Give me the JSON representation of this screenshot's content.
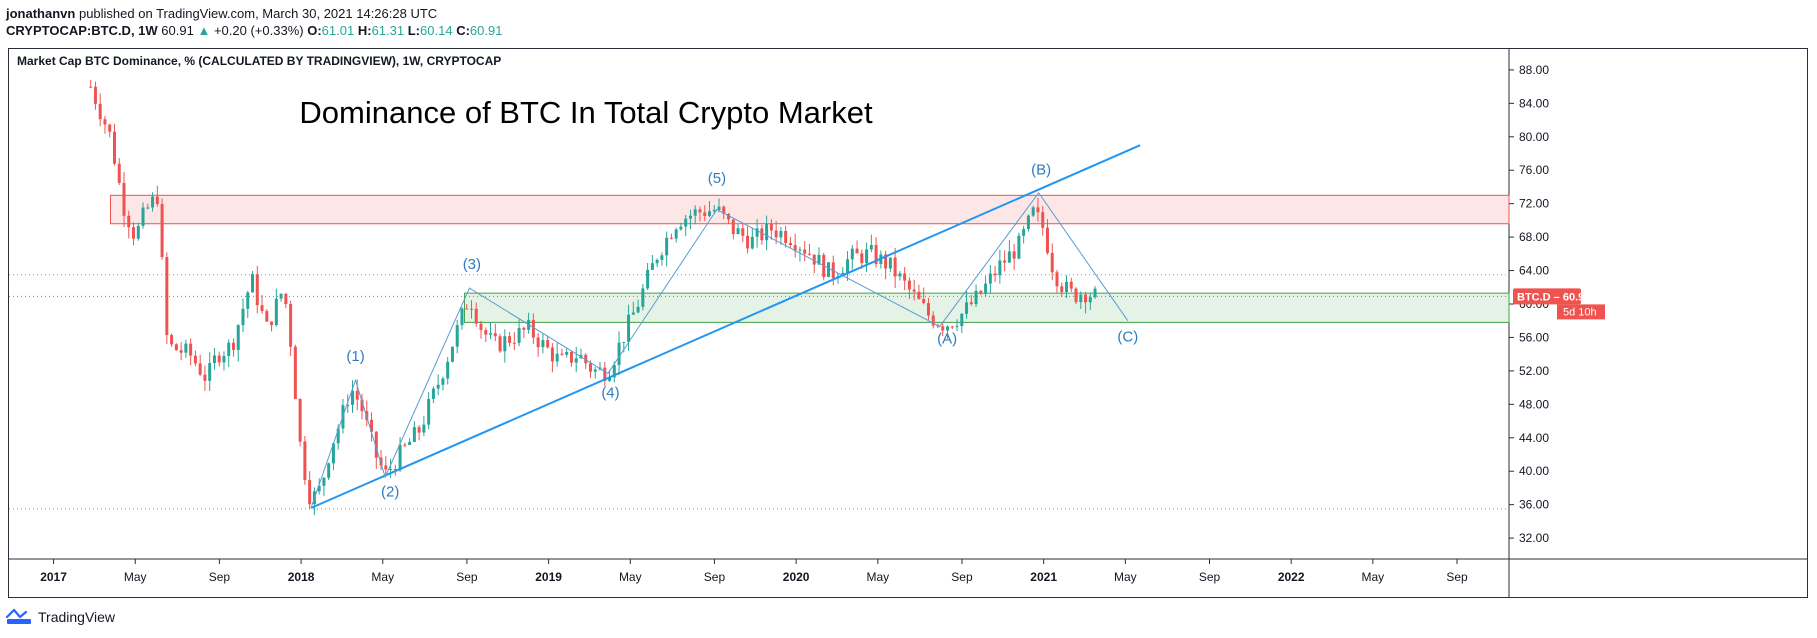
{
  "header": {
    "author": "jonathanvn",
    "published": "published on TradingView.com, March 30, 2021 14:26:28 UTC",
    "symbol": "CRYPTOCAP:BTC.D, 1W",
    "last": "60.91",
    "change": "+0.20 (+0.33%)",
    "o_label": "O:",
    "o_val": "61.01",
    "h_label": "H:",
    "h_val": "61.31",
    "l_label": "L:",
    "l_val": "60.14",
    "c_label": "C:",
    "c_val": "60.91"
  },
  "footer": {
    "brand": "TradingView"
  },
  "chart_data": {
    "type": "candlestick",
    "legend": "Market Cap BTC Dominance, % (CALCULATED BY TRADINGVIEW), 1W, CRYPTOCAP",
    "title": "Dominance of BTC In Total Crypto Market",
    "y_ticks": [
      "88.00",
      "84.00",
      "80.00",
      "76.00",
      "72.00",
      "68.00",
      "64.00",
      "60.00",
      "56.00",
      "52.00",
      "48.00",
      "44.00",
      "40.00",
      "36.00",
      "32.00"
    ],
    "ylim": [
      29.5,
      90.5
    ],
    "x_ticks": [
      {
        "label": "2017",
        "t": 2017.0,
        "bold": true
      },
      {
        "label": "May",
        "t": 2017.33
      },
      {
        "label": "Sep",
        "t": 2017.67
      },
      {
        "label": "2018",
        "t": 2018.0,
        "bold": true
      },
      {
        "label": "May",
        "t": 2018.33
      },
      {
        "label": "Sep",
        "t": 2018.67
      },
      {
        "label": "2019",
        "t": 2019.0,
        "bold": true
      },
      {
        "label": "May",
        "t": 2019.33
      },
      {
        "label": "Sep",
        "t": 2019.67
      },
      {
        "label": "2020",
        "t": 2020.0,
        "bold": true
      },
      {
        "label": "May",
        "t": 2020.33
      },
      {
        "label": "Sep",
        "t": 2020.67
      },
      {
        "label": "2021",
        "t": 2021.0,
        "bold": true
      },
      {
        "label": "May",
        "t": 2021.33
      },
      {
        "label": "Sep",
        "t": 2021.67
      },
      {
        "label": "2022",
        "t": 2022.0,
        "bold": true
      },
      {
        "label": "May",
        "t": 2022.33
      },
      {
        "label": "Sep",
        "t": 2022.67
      }
    ],
    "x_range": [
      2016.82,
      2022.88
    ],
    "last_price": {
      "label": "BTC.D",
      "value": 60.91,
      "display": "60.91",
      "countdown": "5d 10h"
    },
    "colors": {
      "up": "#26a69a",
      "down": "#ef5350",
      "line": "#2196f3",
      "wave": "#5b9bd5",
      "red_zone": "#ef5350",
      "green_zone": "#43a047"
    },
    "zones": [
      {
        "name": "resistance",
        "t_start": 2017.23,
        "y_low": 69.6,
        "y_high": 73.0,
        "color": "red"
      },
      {
        "name": "support",
        "t_start": 2018.66,
        "y_low": 57.8,
        "y_high": 61.3,
        "color": "green"
      }
    ],
    "hlines": [
      63.5,
      35.5
    ],
    "trendline": {
      "t1": 2018.04,
      "y1": 35.6,
      "t2": 2021.39,
      "y2": 79.0
    },
    "wave_path": [
      {
        "t": 2018.04,
        "y": 35.6
      },
      {
        "t": 2018.22,
        "y": 50.9
      },
      {
        "t": 2018.34,
        "y": 39.3
      },
      {
        "t": 2018.68,
        "y": 61.9
      },
      {
        "t": 2019.24,
        "y": 51.7
      },
      {
        "t": 2019.68,
        "y": 71.3
      },
      {
        "t": 2020.58,
        "y": 57.3
      },
      {
        "t": 2020.98,
        "y": 73.3
      },
      {
        "t": 2021.34,
        "y": 58.0
      }
    ],
    "wave_labels": [
      {
        "text": "(1)",
        "t": 2018.22,
        "y": 53.2
      },
      {
        "text": "(2)",
        "t": 2018.36,
        "y": 37.0
      },
      {
        "text": "(3)",
        "t": 2018.69,
        "y": 64.2
      },
      {
        "text": "(4)",
        "t": 2019.25,
        "y": 48.8
      },
      {
        "text": "(5)",
        "t": 2019.68,
        "y": 74.5
      },
      {
        "text": "(A)",
        "t": 2020.61,
        "y": 55.3
      },
      {
        "text": "(B)",
        "t": 2020.99,
        "y": 75.5
      },
      {
        "text": "(C)",
        "t": 2021.34,
        "y": 55.5
      }
    ],
    "series_close": [
      [
        2017.15,
        86.0
      ],
      [
        2017.23,
        80.0
      ],
      [
        2017.28,
        72.0
      ],
      [
        2017.33,
        68.0
      ],
      [
        2017.37,
        71.0
      ],
      [
        2017.42,
        73.0
      ],
      [
        2017.46,
        55.0
      ],
      [
        2017.55,
        54.0
      ],
      [
        2017.62,
        51.0
      ],
      [
        2017.66,
        54.0
      ],
      [
        2017.72,
        55.0
      ],
      [
        2017.8,
        63.0
      ],
      [
        2017.86,
        57.0
      ],
      [
        2017.93,
        62.0
      ],
      [
        2017.96,
        55.0
      ],
      [
        2018.0,
        42.0
      ],
      [
        2018.04,
        36.5
      ],
      [
        2018.08,
        38.0
      ],
      [
        2018.12,
        43.0
      ],
      [
        2018.16,
        46.0
      ],
      [
        2018.2,
        50.0
      ],
      [
        2018.24,
        48.0
      ],
      [
        2018.3,
        42.0
      ],
      [
        2018.34,
        39.5
      ],
      [
        2018.4,
        42.0
      ],
      [
        2018.48,
        45.0
      ],
      [
        2018.56,
        51.0
      ],
      [
        2018.62,
        56.0
      ],
      [
        2018.68,
        61.0
      ],
      [
        2018.73,
        57.0
      ],
      [
        2018.78,
        55.0
      ],
      [
        2018.85,
        56.0
      ],
      [
        2018.92,
        57.0
      ],
      [
        2018.98,
        55.0
      ],
      [
        2019.05,
        53.0
      ],
      [
        2019.12,
        54.0
      ],
      [
        2019.18,
        52.0
      ],
      [
        2019.24,
        52.0
      ],
      [
        2019.3,
        56.0
      ],
      [
        2019.36,
        60.0
      ],
      [
        2019.44,
        66.0
      ],
      [
        2019.52,
        70.0
      ],
      [
        2019.6,
        71.0
      ],
      [
        2019.68,
        71.3
      ],
      [
        2019.74,
        69.0
      ],
      [
        2019.82,
        67.5
      ],
      [
        2019.9,
        69.0
      ],
      [
        2019.98,
        68.0
      ],
      [
        2020.06,
        66.0
      ],
      [
        2020.14,
        63.5
      ],
      [
        2020.22,
        65.5
      ],
      [
        2020.3,
        66.0
      ],
      [
        2020.38,
        64.5
      ],
      [
        2020.46,
        61.5
      ],
      [
        2020.54,
        58.5
      ],
      [
        2020.6,
        57.5
      ],
      [
        2020.66,
        58.5
      ],
      [
        2020.74,
        61.0
      ],
      [
        2020.82,
        64.5
      ],
      [
        2020.9,
        67.0
      ],
      [
        2020.96,
        71.0
      ],
      [
        2021.0,
        69.0
      ],
      [
        2021.04,
        64.0
      ],
      [
        2021.08,
        62.0
      ],
      [
        2021.12,
        61.0
      ],
      [
        2021.16,
        61.5
      ],
      [
        2021.21,
        60.91
      ]
    ]
  }
}
